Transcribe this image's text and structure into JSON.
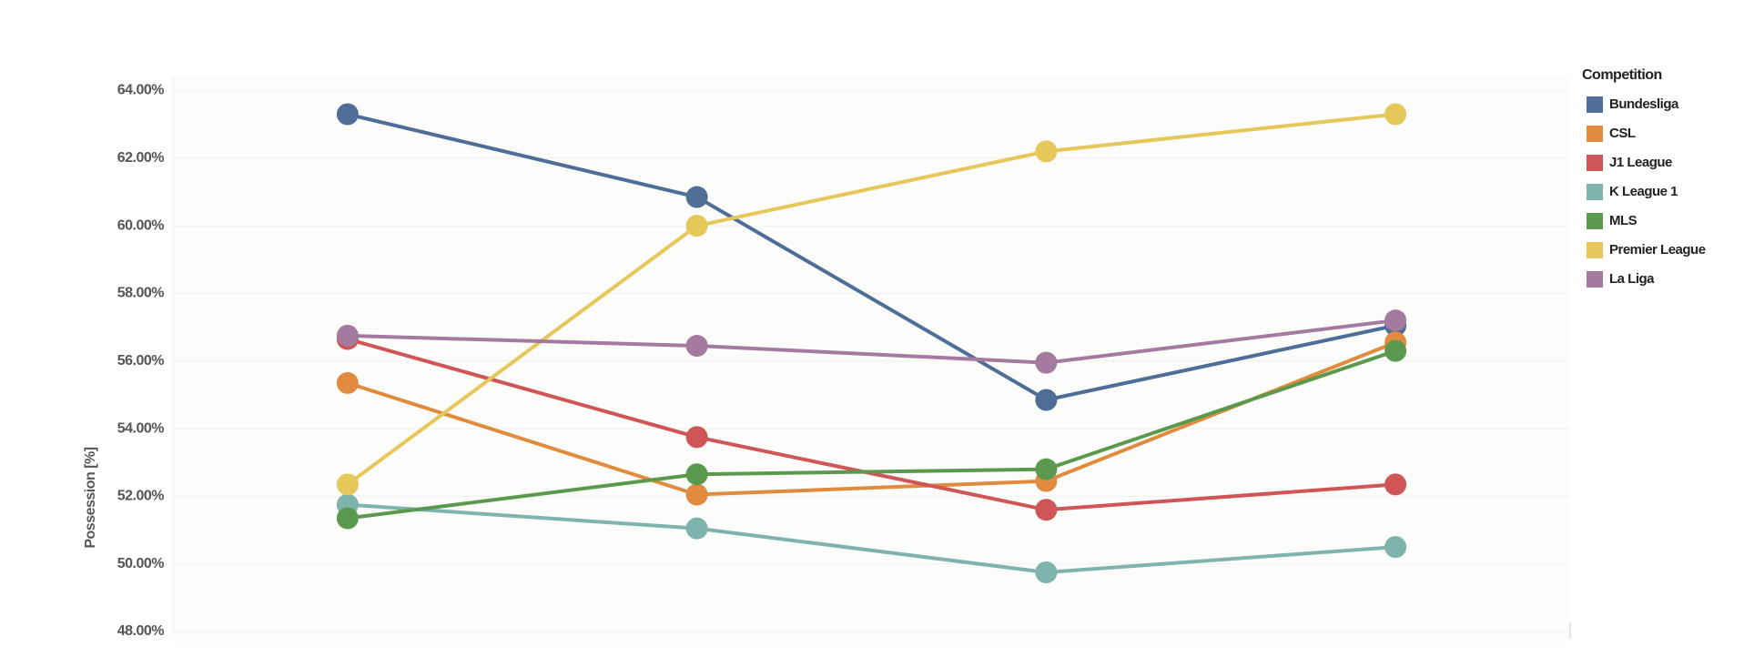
{
  "chart_data": {
    "type": "line",
    "y_label": "Possession [%]",
    "legend_title": "Competition",
    "legend_position": "right",
    "grid": true,
    "categories": [
      null,
      null,
      null,
      null
    ],
    "ylim": [
      48,
      64
    ],
    "yticks": [
      {
        "value": 48,
        "label": "48.00%"
      },
      {
        "value": 50,
        "label": "50.00%"
      },
      {
        "value": 52,
        "label": "52.00%"
      },
      {
        "value": 54,
        "label": "54.00%"
      },
      {
        "value": 56,
        "label": "56.00%"
      },
      {
        "value": 58,
        "label": "58.00%"
      },
      {
        "value": 60,
        "label": "60.00%"
      },
      {
        "value": 62,
        "label": "62.00%"
      },
      {
        "value": 64,
        "label": "64.00%"
      }
    ],
    "series": [
      {
        "name": "Bundesliga",
        "color": "#4e6d97",
        "values": [
          63.3,
          60.85,
          54.85,
          57.05
        ]
      },
      {
        "name": "CSL",
        "color": "#e08b3d",
        "values": [
          55.35,
          52.05,
          52.45,
          56.55
        ]
      },
      {
        "name": "J1 League",
        "color": "#cf5556",
        "values": [
          56.65,
          53.75,
          51.6,
          52.35
        ]
      },
      {
        "name": "K League 1",
        "color": "#7fb3ad",
        "values": [
          51.75,
          51.05,
          49.75,
          50.5
        ]
      },
      {
        "name": "MLS",
        "color": "#5b9a4e",
        "values": [
          51.35,
          52.65,
          52.8,
          56.3
        ]
      },
      {
        "name": "Premier League",
        "color": "#e5c75a",
        "values": [
          52.35,
          60.0,
          62.2,
          63.3
        ]
      },
      {
        "name": "La Liga",
        "color": "#a47a9e",
        "values": [
          56.75,
          56.45,
          55.95,
          57.2
        ]
      }
    ]
  }
}
